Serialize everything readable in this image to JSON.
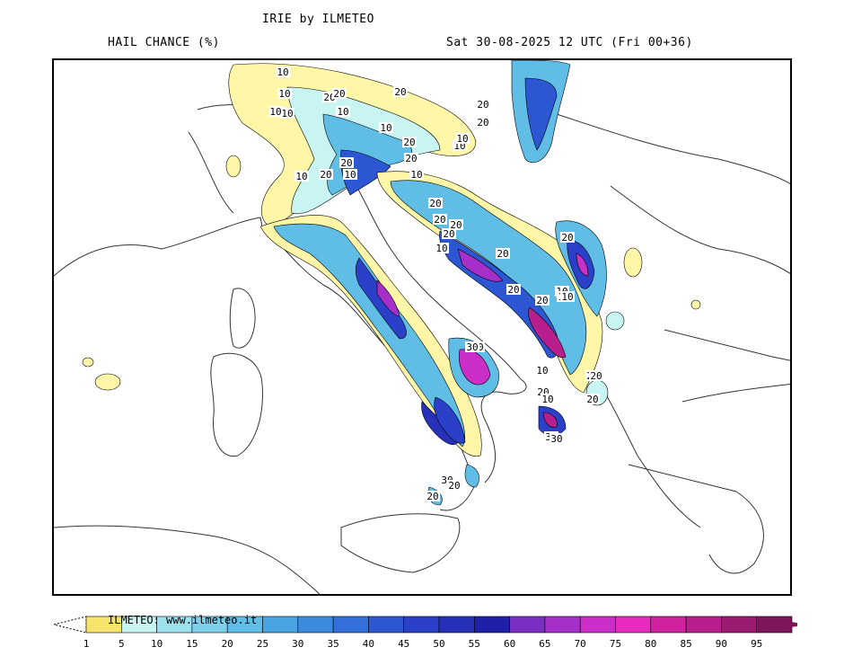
{
  "header": {
    "title": "IRIE by ILMETEO",
    "field": "HAIL CHANCE (%)",
    "valid": "Sat 30-08-2025 12 UTC (Fri 00+36)"
  },
  "legend": {
    "credit": "ILMETEO: www.ilmeteo.it",
    "ticks": [
      "1",
      "5",
      "10",
      "15",
      "20",
      "25",
      "30",
      "35",
      "40",
      "45",
      "50",
      "55",
      "60",
      "65",
      "70",
      "75",
      "80",
      "85",
      "90",
      "95"
    ],
    "colors": [
      "#f5e36b",
      "#c8f4f2",
      "#9ee0ee",
      "#7ed0ea",
      "#5fbde6",
      "#4aa4e3",
      "#3b8be0",
      "#3370dc",
      "#2d56d2",
      "#2a40c8",
      "#2730b8",
      "#1f1fa8",
      "#7a2fc3",
      "#a52fc8",
      "#cc2ec8",
      "#e82bbf",
      "#d0239f",
      "#b81f8c",
      "#9b1a72",
      "#7e1459"
    ]
  },
  "map_labels": [
    {
      "text": "10"
    },
    {
      "text": "10"
    },
    {
      "text": "10"
    },
    {
      "text": "10"
    },
    {
      "text": "20"
    },
    {
      "text": "20"
    },
    {
      "text": "10"
    },
    {
      "text": "20"
    },
    {
      "text": "10"
    },
    {
      "text": "20"
    },
    {
      "text": "20"
    },
    {
      "text": "10"
    },
    {
      "text": "20"
    },
    {
      "text": "20"
    },
    {
      "text": "10"
    },
    {
      "text": "10"
    },
    {
      "text": "20"
    },
    {
      "text": "10"
    },
    {
      "text": "20"
    },
    {
      "text": "10"
    },
    {
      "text": "20"
    },
    {
      "text": "20"
    },
    {
      "text": "30"
    },
    {
      "text": "20"
    },
    {
      "text": "10"
    },
    {
      "text": "20"
    },
    {
      "text": "20"
    },
    {
      "text": "30"
    },
    {
      "text": "30"
    },
    {
      "text": "10"
    },
    {
      "text": "20"
    },
    {
      "text": "20"
    },
    {
      "text": "10"
    },
    {
      "text": "20"
    },
    {
      "text": "20"
    },
    {
      "text": "10"
    },
    {
      "text": "20"
    },
    {
      "text": "10"
    },
    {
      "text": "30"
    },
    {
      "text": "20"
    },
    {
      "text": "20"
    },
    {
      "text": "20"
    },
    {
      "text": "30"
    },
    {
      "text": "20"
    },
    {
      "text": "20"
    },
    {
      "text": "10"
    }
  ]
}
